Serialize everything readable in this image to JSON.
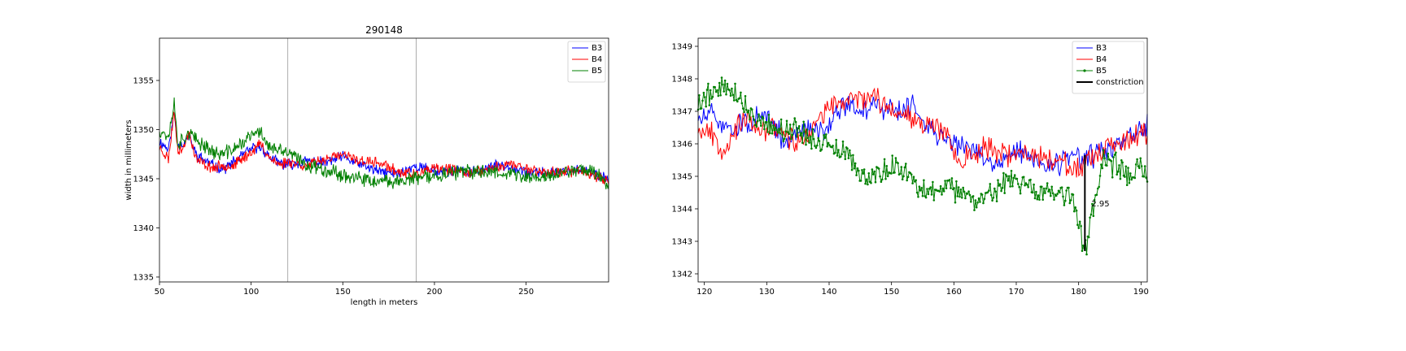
{
  "chart_data": [
    {
      "type": "line",
      "title": "290148",
      "xlabel": "length in meters",
      "ylabel": "width in millimeters",
      "xlim": [
        50,
        295
      ],
      "ylim": [
        1334.5,
        1359.3
      ],
      "xticks": [
        50,
        100,
        150,
        200,
        250
      ],
      "yticks": [
        1335,
        1340,
        1345,
        1350,
        1355
      ],
      "legend_position": "upper right",
      "vlines": [
        120,
        190
      ],
      "vline_color": "#999999",
      "series": [
        {
          "name": "B3",
          "color": "#0000ff",
          "x": [
            50,
            55,
            58,
            60,
            63,
            66,
            70,
            75,
            80,
            85,
            90,
            95,
            100,
            105,
            110,
            115,
            120,
            130,
            140,
            150,
            160,
            170,
            180,
            190,
            200,
            210,
            220,
            230,
            240,
            250,
            260,
            270,
            280,
            290,
            295
          ],
          "y": [
            1348.8,
            1348.0,
            1351.8,
            1348.5,
            1348.5,
            1349.3,
            1347.5,
            1346.8,
            1346.3,
            1346.0,
            1346.6,
            1347.4,
            1348.0,
            1348.3,
            1347.2,
            1346.6,
            1346.4,
            1346.8,
            1346.6,
            1347.2,
            1346.4,
            1345.7,
            1345.5,
            1346.3,
            1345.8,
            1345.8,
            1345.6,
            1346.2,
            1346.4,
            1345.6,
            1345.6,
            1345.8,
            1345.9,
            1345.3,
            1345.0
          ]
        },
        {
          "name": "B4",
          "color": "#ff0000",
          "x": [
            50,
            55,
            58,
            60,
            63,
            66,
            70,
            75,
            80,
            85,
            90,
            95,
            100,
            105,
            110,
            115,
            120,
            130,
            140,
            150,
            160,
            170,
            180,
            190,
            200,
            210,
            220,
            230,
            240,
            250,
            260,
            270,
            280,
            290,
            295
          ],
          "y": [
            1348.2,
            1347.0,
            1352.0,
            1348.0,
            1348.0,
            1349.8,
            1347.0,
            1346.4,
            1346.1,
            1346.4,
            1346.3,
            1347.0,
            1347.7,
            1348.6,
            1347.2,
            1346.4,
            1346.8,
            1346.3,
            1347.0,
            1347.4,
            1346.8,
            1346.6,
            1345.7,
            1345.4,
            1346.0,
            1345.9,
            1345.6,
            1346.0,
            1346.5,
            1346.1,
            1345.6,
            1345.7,
            1345.8,
            1345.2,
            1344.8
          ]
        },
        {
          "name": "B5",
          "color": "#008000",
          "x": [
            50,
            55,
            58,
            60,
            63,
            66,
            70,
            75,
            80,
            85,
            90,
            95,
            100,
            105,
            110,
            115,
            120,
            130,
            140,
            150,
            160,
            170,
            180,
            190,
            200,
            210,
            220,
            230,
            240,
            250,
            260,
            270,
            280,
            290,
            295
          ],
          "y": [
            1350.0,
            1349.3,
            1352.8,
            1348.6,
            1349.0,
            1349.8,
            1348.8,
            1348.4,
            1347.6,
            1347.5,
            1348.0,
            1348.6,
            1349.4,
            1349.8,
            1348.2,
            1347.8,
            1347.7,
            1346.4,
            1346.0,
            1345.4,
            1344.9,
            1344.6,
            1344.8,
            1345.0,
            1345.3,
            1345.6,
            1345.7,
            1345.8,
            1345.6,
            1345.1,
            1345.2,
            1345.6,
            1346.1,
            1345.4,
            1344.3
          ]
        }
      ]
    },
    {
      "type": "line",
      "title": "",
      "xlabel": "",
      "ylabel": "",
      "xlim": [
        119,
        191
      ],
      "ylim": [
        1341.75,
        1349.25
      ],
      "xticks": [
        120,
        130,
        140,
        150,
        160,
        170,
        180,
        190
      ],
      "yticks": [
        1342,
        1343,
        1344,
        1345,
        1346,
        1347,
        1348,
        1349
      ],
      "legend_position": "upper right",
      "series": [
        {
          "name": "B3",
          "color": "#0000ff",
          "marker": false,
          "x": [
            119,
            121,
            123,
            125,
            127,
            129,
            131,
            133,
            135,
            137,
            139,
            141,
            143,
            145,
            147,
            149,
            151,
            153,
            155,
            157,
            159,
            161,
            163,
            165,
            167,
            169,
            171,
            173,
            175,
            177,
            179,
            181,
            183,
            185,
            187,
            189,
            191
          ],
          "y": [
            1346.7,
            1346.9,
            1346.6,
            1346.5,
            1346.7,
            1346.8,
            1346.6,
            1346.0,
            1346.3,
            1346.5,
            1346.4,
            1347.0,
            1347.2,
            1347.0,
            1347.2,
            1347.1,
            1347.0,
            1347.2,
            1346.8,
            1346.3,
            1346.1,
            1346.0,
            1345.8,
            1345.5,
            1345.4,
            1345.7,
            1345.8,
            1345.5,
            1345.2,
            1345.4,
            1345.6,
            1345.5,
            1345.7,
            1345.8,
            1346.0,
            1346.3,
            1346.5
          ]
        },
        {
          "name": "B4",
          "color": "#ff0000",
          "marker": false,
          "x": [
            119,
            121,
            123,
            125,
            127,
            129,
            131,
            133,
            135,
            137,
            139,
            141,
            143,
            145,
            147,
            149,
            151,
            153,
            155,
            157,
            159,
            161,
            163,
            165,
            167,
            169,
            171,
            173,
            175,
            177,
            179,
            181,
            183,
            185,
            187,
            189,
            191
          ],
          "y": [
            1346.5,
            1346.4,
            1345.8,
            1346.5,
            1346.7,
            1346.3,
            1346.6,
            1346.2,
            1346.0,
            1346.4,
            1346.9,
            1347.2,
            1347.3,
            1347.5,
            1347.4,
            1347.2,
            1347.0,
            1346.9,
            1346.7,
            1346.5,
            1346.3,
            1345.5,
            1345.6,
            1345.9,
            1345.8,
            1345.6,
            1345.7,
            1345.6,
            1345.6,
            1345.5,
            1345.2,
            1345.3,
            1345.6,
            1345.9,
            1346.0,
            1346.2,
            1346.3
          ]
        },
        {
          "name": "B5",
          "color": "#008000",
          "marker": true,
          "x": [
            119,
            121,
            123,
            125,
            127,
            129,
            131,
            133,
            135,
            137,
            139,
            141,
            143,
            145,
            147,
            149,
            151,
            153,
            155,
            157,
            159,
            161,
            163,
            165,
            167,
            169,
            171,
            173,
            175,
            177,
            179,
            180,
            181,
            182,
            184,
            186,
            188,
            190,
            191
          ],
          "y": [
            1347.2,
            1347.6,
            1347.8,
            1347.6,
            1347.0,
            1346.7,
            1346.6,
            1346.3,
            1346.5,
            1346.2,
            1346.0,
            1345.8,
            1345.6,
            1345.1,
            1345.0,
            1345.2,
            1345.3,
            1345.0,
            1344.6,
            1344.5,
            1344.7,
            1344.5,
            1344.3,
            1344.4,
            1344.6,
            1344.9,
            1344.8,
            1344.5,
            1344.6,
            1344.3,
            1344.5,
            1343.5,
            1342.7,
            1343.6,
            1345.5,
            1345.3,
            1345.0,
            1345.4,
            1345.1
          ]
        },
        {
          "name": "constriction",
          "color": "#000000",
          "type": "vline",
          "x": 181,
          "y_from": 1342.7,
          "y_to": 1345.65,
          "annotation": "2.95"
        }
      ]
    }
  ]
}
